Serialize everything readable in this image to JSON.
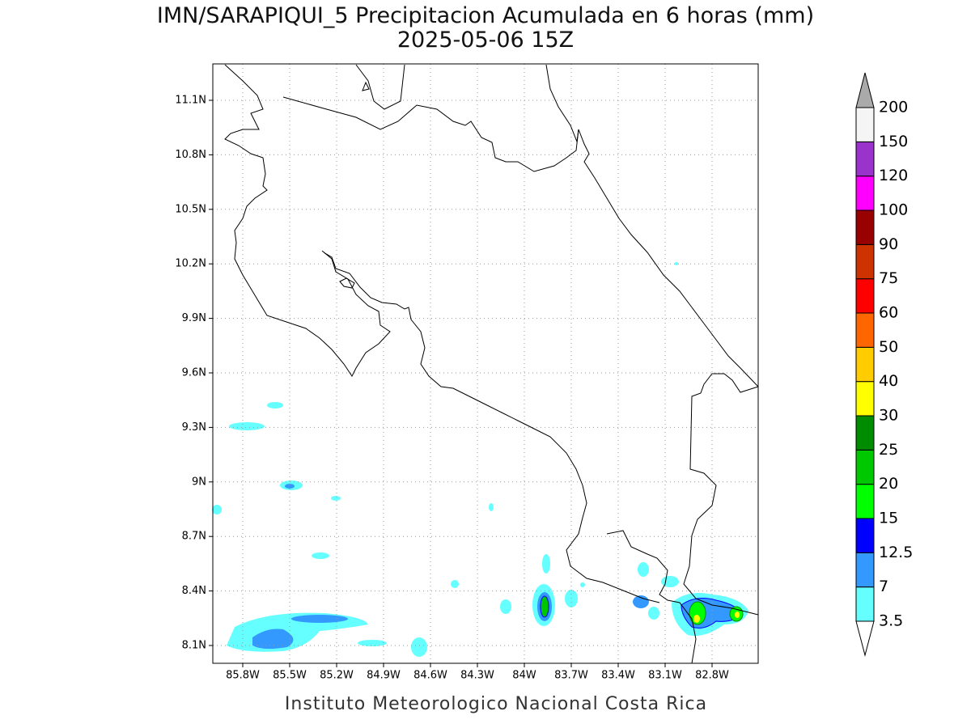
{
  "title": "IMN/SARAPIQUI_5 Precipitacion Acumulada en 6 horas (mm)",
  "subtitle": "2025-05-06 15Z",
  "map": {
    "x_labels": [
      "85.8W",
      "85.5W",
      "85.2W",
      "84.9W",
      "84.6W",
      "84.3W",
      "84W",
      "83.7W",
      "83.4W",
      "83.1W",
      "82.8W"
    ],
    "y_labels": [
      "8.1N",
      "8.4N",
      "8.7N",
      "9N",
      "9.3N",
      "9.6N",
      "9.9N",
      "10.2N",
      "10.5N",
      "10.8N",
      "11.1N"
    ]
  },
  "colorbar": {
    "levels": [
      3.5,
      7,
      12.5,
      15,
      20,
      25,
      30,
      40,
      50,
      60,
      75,
      90,
      100,
      120,
      150,
      200
    ],
    "colors": [
      "#ffffff",
      "#66ffff",
      "#3399ff",
      "#0000ff",
      "#00ff00",
      "#00c800",
      "#008c00",
      "#ffff00",
      "#ffcc00",
      "#ff6600",
      "#ff0000",
      "#cc3300",
      "#990000",
      "#ff00ff",
      "#9933cc",
      "#f5f5f5",
      "#aaaaaa"
    ]
  },
  "footer": "Instituto Meteorologico Nacional Costa Rica"
}
